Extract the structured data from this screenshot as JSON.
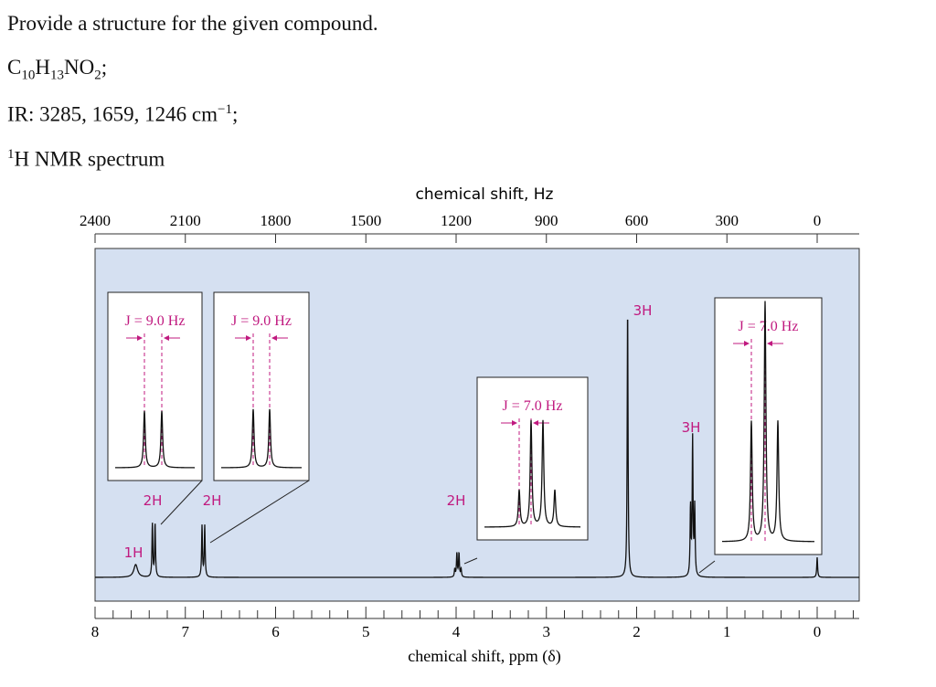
{
  "question": {
    "prompt": "Provide a structure for the given compound.",
    "formula": {
      "c": "C",
      "c_n": "10",
      "h": "H",
      "h_n": "13",
      "no": "NO",
      "o_n": "2",
      "end": ";"
    },
    "ir": {
      "text": "IR: 3285, 1659, 1246 cm",
      "sup": "−1",
      "end": ";"
    },
    "nmr": {
      "sup": "1",
      "text": "H NMR spectrum"
    }
  },
  "chart_data": {
    "type": "line",
    "title": "",
    "top_axis_label": "chemical shift, Hz",
    "top_ticks": [
      "2400",
      "2100",
      "1800",
      "1500",
      "1200",
      "900",
      "600",
      "300",
      "0"
    ],
    "xlabel": "chemical shift, ppm (δ)",
    "bottom_ticks": [
      "8",
      "7",
      "6",
      "5",
      "4",
      "3",
      "2",
      "1",
      "0"
    ],
    "xlim_ppm": [
      8,
      0
    ],
    "peaks": [
      {
        "shift_ppm": 7.55,
        "multiplicity": "singlet",
        "integration": "1H"
      },
      {
        "shift_ppm": 7.35,
        "multiplicity": "doublet",
        "J_hz": 9.0,
        "integration": "2H"
      },
      {
        "shift_ppm": 6.8,
        "multiplicity": "doublet",
        "J_hz": 9.0,
        "integration": "2H"
      },
      {
        "shift_ppm": 3.98,
        "multiplicity": "quartet",
        "J_hz": 7.0,
        "integration": "2H"
      },
      {
        "shift_ppm": 2.1,
        "multiplicity": "singlet",
        "integration": "3H"
      },
      {
        "shift_ppm": 1.38,
        "multiplicity": "triplet",
        "J_hz": 7.0,
        "integration": "3H"
      },
      {
        "shift_ppm": 0.0,
        "multiplicity": "singlet",
        "integration": ""
      }
    ],
    "insets": [
      {
        "label": "J = 9.0 Hz",
        "peak": "7.35"
      },
      {
        "label": "J = 9.0 Hz",
        "peak": "6.80"
      },
      {
        "label": "J = 7.0 Hz",
        "peak": "3.98"
      },
      {
        "label": "J = 7.0 Hz",
        "peak": "1.38"
      }
    ],
    "colors": {
      "panel": "#d5e0f1",
      "accent": "#c0197f",
      "trace": "#111111"
    }
  }
}
